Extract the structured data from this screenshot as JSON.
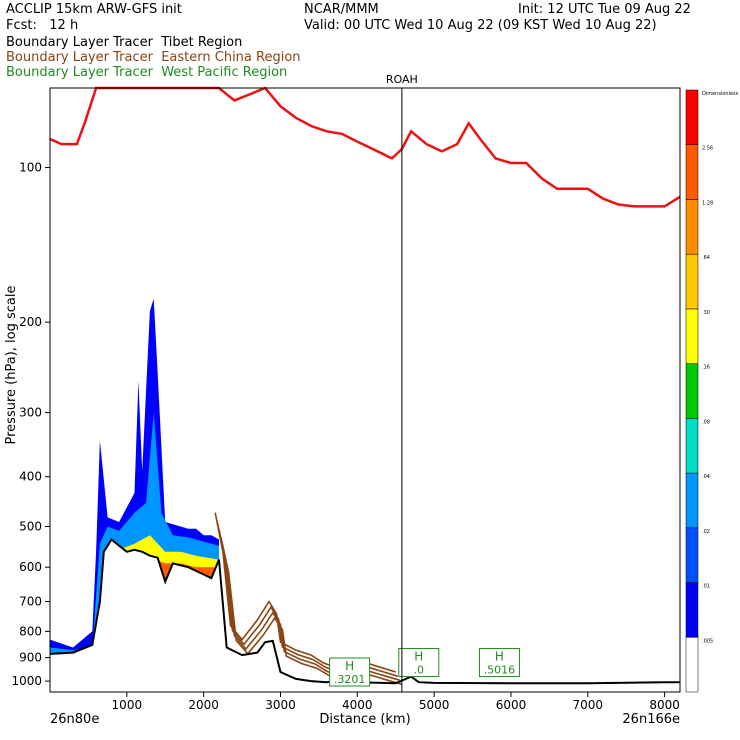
{
  "header": {
    "line1_left": "ACCLIP 15km ARW-GFS init",
    "line1_mid": "NCAR/MMM",
    "line1_right": "Init: 12 UTC Tue 09 Aug 22",
    "line2_left": "Fcst:   12 h",
    "line2_right": "Valid: 00 UTC Wed 10 Aug 22 (09 KST Wed 10 Aug 22)",
    "legend": [
      {
        "text": "Boundary Layer Tracer  Tibet Region",
        "color": "#000000"
      },
      {
        "text": "Boundary Layer Tracer  Eastern China Region",
        "color": "#8B4513"
      },
      {
        "text": "Boundary Layer Tracer  West Pacific Region",
        "color": "#228B22"
      }
    ]
  },
  "chart_data": {
    "type": "cross-section",
    "ylabel": "Pressure (hPa), log scale",
    "xlabel": "Distance (km)",
    "xlim": [
      0,
      8200
    ],
    "ylim": [
      1050,
      70
    ],
    "x_ticks": [
      1000,
      2000,
      3000,
      4000,
      5000,
      6000,
      7000,
      8000
    ],
    "y_ticks": [
      100,
      200,
      300,
      400,
      500,
      600,
      700,
      800,
      900,
      1000
    ],
    "left_end_label": "26n80e",
    "right_end_label": "26n166e",
    "vertical_marker": {
      "label": "ROAH",
      "x": 4580
    },
    "colorbar": {
      "levels": [
        ".005",
        ".01",
        ".02",
        ".04",
        ".08",
        ".16",
        ".30",
        ".64",
        "1.28",
        "2.56",
        "Dimensionless"
      ],
      "colors": [
        "#ffffff",
        "#0000ff",
        "#0050ff",
        "#0096ff",
        "#00dcc8",
        "#00c800",
        "#ffff00",
        "#ffc800",
        "#ff8c00",
        "#ff5a00",
        "#ff0000"
      ]
    },
    "tropopause_red": [
      [
        0,
        88
      ],
      [
        150,
        90
      ],
      [
        350,
        90
      ],
      [
        450,
        82
      ],
      [
        600,
        70
      ],
      [
        800,
        55
      ],
      [
        1000,
        50
      ],
      [
        1200,
        52
      ],
      [
        1400,
        62
      ],
      [
        1500,
        66
      ],
      [
        1700,
        58
      ],
      [
        1900,
        55
      ],
      [
        2000,
        58
      ],
      [
        2100,
        64
      ],
      [
        2200,
        68
      ],
      [
        2300,
        72
      ],
      [
        2400,
        74
      ],
      [
        2600,
        72
      ],
      [
        2800,
        68
      ],
      [
        3000,
        76
      ],
      [
        3200,
        80
      ],
      [
        3400,
        83
      ],
      [
        3600,
        85
      ],
      [
        3800,
        86
      ],
      [
        4000,
        89
      ],
      [
        4200,
        92
      ],
      [
        4450,
        96
      ],
      [
        4580,
        92
      ],
      [
        4700,
        85
      ],
      [
        4900,
        90
      ],
      [
        5100,
        93
      ],
      [
        5300,
        90
      ],
      [
        5450,
        82
      ],
      [
        5600,
        88
      ],
      [
        5800,
        96
      ],
      [
        6000,
        98
      ],
      [
        6200,
        98
      ],
      [
        6400,
        105
      ],
      [
        6600,
        110
      ],
      [
        6800,
        110
      ],
      [
        7000,
        110
      ],
      [
        7200,
        115
      ],
      [
        7400,
        118
      ],
      [
        7600,
        119
      ],
      [
        7800,
        119
      ],
      [
        8000,
        119
      ],
      [
        8200,
        114
      ]
    ],
    "terrain_black": [
      [
        0,
        885
      ],
      [
        300,
        880
      ],
      [
        550,
        850
      ],
      [
        650,
        700
      ],
      [
        700,
        560
      ],
      [
        800,
        530
      ],
      [
        900,
        545
      ],
      [
        1000,
        560
      ],
      [
        1100,
        555
      ],
      [
        1200,
        560
      ],
      [
        1300,
        570
      ],
      [
        1400,
        575
      ],
      [
        1500,
        640
      ],
      [
        1600,
        590
      ],
      [
        1700,
        595
      ],
      [
        1800,
        600
      ],
      [
        1900,
        610
      ],
      [
        2000,
        620
      ],
      [
        2100,
        630
      ],
      [
        2200,
        580
      ],
      [
        2300,
        860
      ],
      [
        2500,
        890
      ],
      [
        2700,
        880
      ],
      [
        2800,
        840
      ],
      [
        2900,
        835
      ],
      [
        3000,
        960
      ],
      [
        3200,
        990
      ],
      [
        3400,
        1000
      ],
      [
        3600,
        1005
      ],
      [
        3800,
        995
      ],
      [
        4000,
        1005
      ],
      [
        4500,
        1010
      ],
      [
        4700,
        980
      ],
      [
        4800,
        1005
      ],
      [
        5000,
        1008
      ],
      [
        6000,
        1010
      ],
      [
        7000,
        1010
      ],
      [
        8000,
        1005
      ],
      [
        8200,
        1005
      ]
    ],
    "brown_tracer": [
      [
        2150,
        470
      ],
      [
        2250,
        560
      ],
      [
        2350,
        780
      ],
      [
        2500,
        830
      ],
      [
        2700,
        760
      ],
      [
        2850,
        700
      ],
      [
        2950,
        740
      ],
      [
        3000,
        840
      ],
      [
        3200,
        870
      ],
      [
        3400,
        890
      ],
      [
        3550,
        920
      ],
      [
        3700,
        940
      ],
      [
        3900,
        910
      ],
      [
        4100,
        920
      ],
      [
        4300,
        940
      ],
      [
        4500,
        960
      ]
    ],
    "tracer_fill": [
      {
        "level": ".01",
        "top": [
          [
            0,
            830
          ],
          [
            300,
            860
          ],
          [
            550,
            800
          ],
          [
            600,
            560
          ],
          [
            650,
            340
          ],
          [
            750,
            480
          ],
          [
            900,
            490
          ],
          [
            1100,
            430
          ],
          [
            1150,
            260
          ],
          [
            1200,
            390
          ],
          [
            1300,
            190
          ],
          [
            1350,
            180
          ],
          [
            1400,
            250
          ],
          [
            1500,
            490
          ],
          [
            1600,
            495
          ],
          [
            1700,
            500
          ],
          [
            1800,
            505
          ],
          [
            1900,
            505
          ],
          [
            2000,
            520
          ],
          [
            2100,
            520
          ],
          [
            2200,
            530
          ]
        ]
      },
      {
        "level": ".04",
        "top": [
          [
            0,
            860
          ],
          [
            300,
            870
          ],
          [
            550,
            860
          ],
          [
            650,
            540
          ],
          [
            750,
            500
          ],
          [
            900,
            510
          ],
          [
            1100,
            470
          ],
          [
            1250,
            450
          ],
          [
            1350,
            300
          ],
          [
            1450,
            470
          ],
          [
            1600,
            520
          ],
          [
            1800,
            525
          ],
          [
            2000,
            535
          ],
          [
            2200,
            545
          ]
        ]
      },
      {
        "level": ".30",
        "top": [
          [
            0,
            900
          ],
          [
            550,
            900
          ],
          [
            650,
            700
          ],
          [
            750,
            560
          ],
          [
            900,
            555
          ],
          [
            1100,
            540
          ],
          [
            1300,
            520
          ],
          [
            1500,
            560
          ],
          [
            1700,
            560
          ],
          [
            1900,
            570
          ],
          [
            2200,
            580
          ]
        ]
      },
      {
        "level": "2.56",
        "top": [
          [
            0,
            950
          ],
          [
            550,
            950
          ],
          [
            650,
            820
          ],
          [
            750,
            600
          ],
          [
            900,
            595
          ],
          [
            1100,
            585
          ],
          [
            1300,
            575
          ],
          [
            1500,
            590
          ],
          [
            1700,
            590
          ],
          [
            1900,
            600
          ],
          [
            2200,
            600
          ]
        ]
      }
    ],
    "highs": [
      {
        "label": "H",
        "value": ".3201",
        "x": 3900,
        "p": 960
      },
      {
        "label": "H",
        "value": ".0",
        "x": 4800,
        "p": 920
      },
      {
        "label": "H",
        "value": ".5016",
        "x": 5850,
        "p": 920
      }
    ]
  }
}
